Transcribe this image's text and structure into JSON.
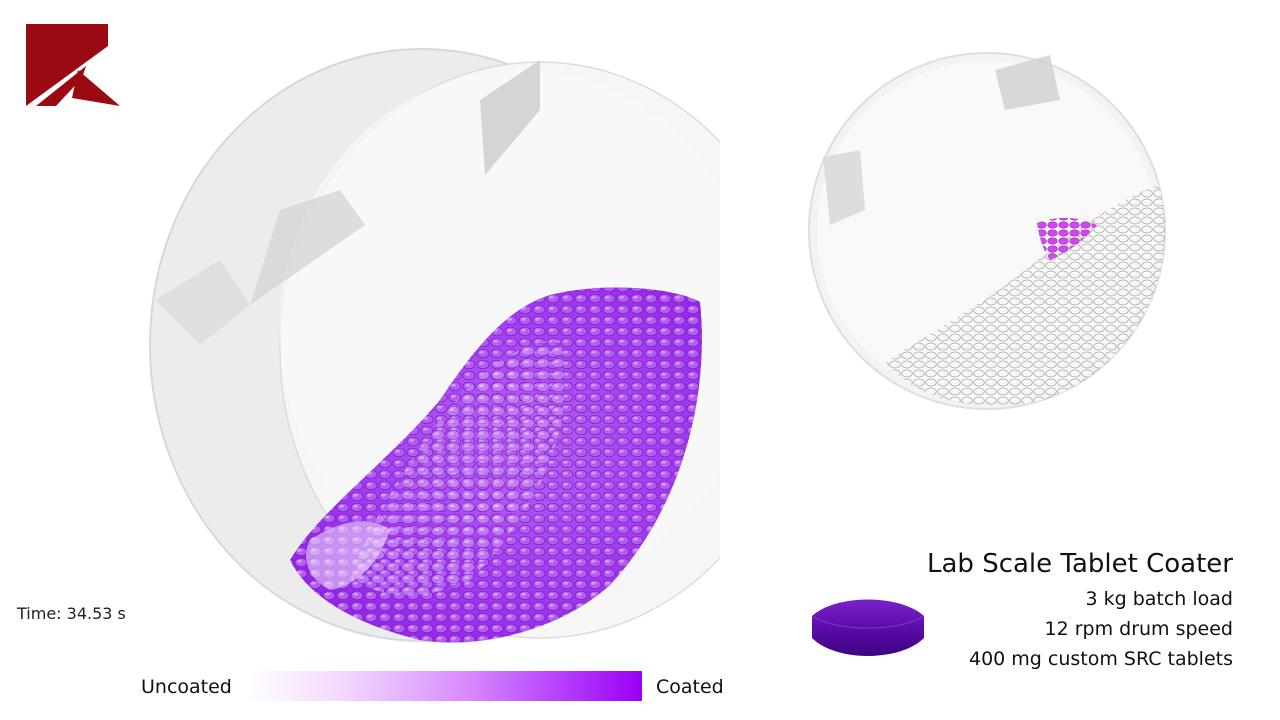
{
  "logo": {
    "icon": "brand-logo-icon",
    "color": "#9b0a13"
  },
  "simulation": {
    "time_label": "Time: 34.53 s"
  },
  "legend": {
    "uncoated_label": "Uncoated",
    "coated_label": "Coated",
    "uncoated_color": "#ffffff",
    "coated_color": "#9a00f5"
  },
  "info": {
    "title": "Lab Scale Tablet Coater",
    "batch_load": "3 kg batch load",
    "drum_speed": "12 rpm drum speed",
    "tablets": "400 mg custom SRC tablets"
  },
  "tablet_icon": {
    "icon": "tablet-icon",
    "color": "#5a0aa6"
  }
}
